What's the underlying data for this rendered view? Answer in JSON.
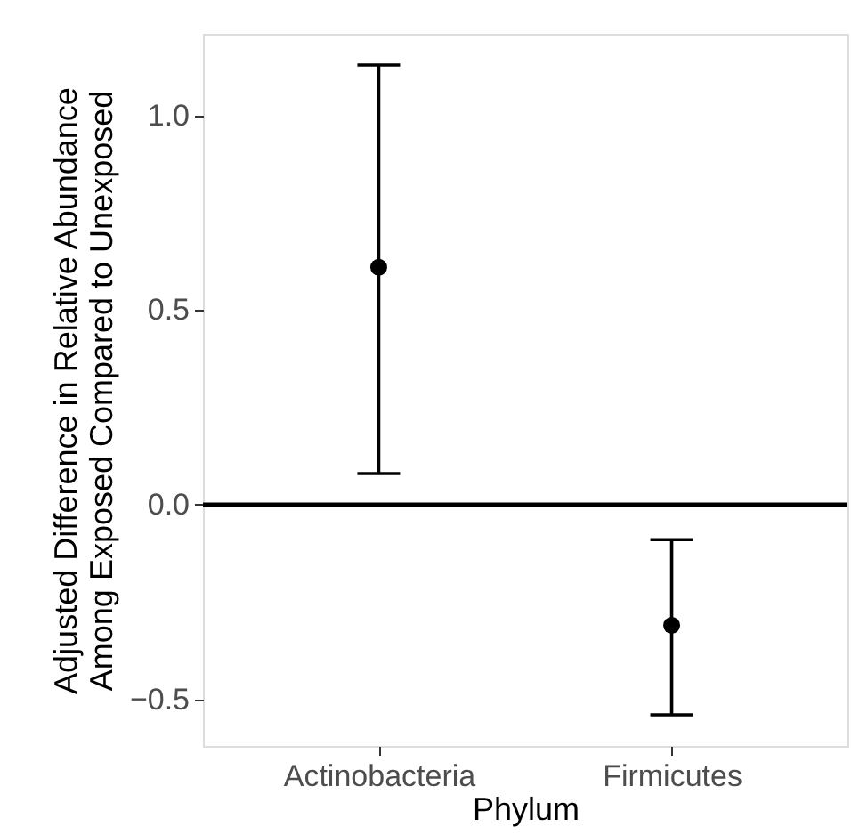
{
  "chart_data": {
    "type": "scatter",
    "xlabel": "Phylum",
    "ylabel": "Adjusted Difference in Relative Abundance\nAmong Exposed Compared to Unexposed",
    "categories": [
      "Actinobacteria",
      "Firmicutes"
    ],
    "values": [
      0.61,
      -0.31
    ],
    "errors": [
      [
        0.08,
        1.13
      ],
      [
        -0.54,
        -0.09
      ]
    ],
    "color": "#000000",
    "marker": "circle",
    "ylim": [
      -0.62,
      1.21
    ],
    "yticks": [
      -0.5,
      {
        "value": 0,
        "label": "0.0"
      },
      0.5,
      {
        "value": 1,
        "label": "1.0"
      }
    ],
    "ref_lines": [
      {
        "axis": "y",
        "value": 0,
        "color": "#000000",
        "line_style": "solid"
      }
    ],
    "grid": false
  }
}
